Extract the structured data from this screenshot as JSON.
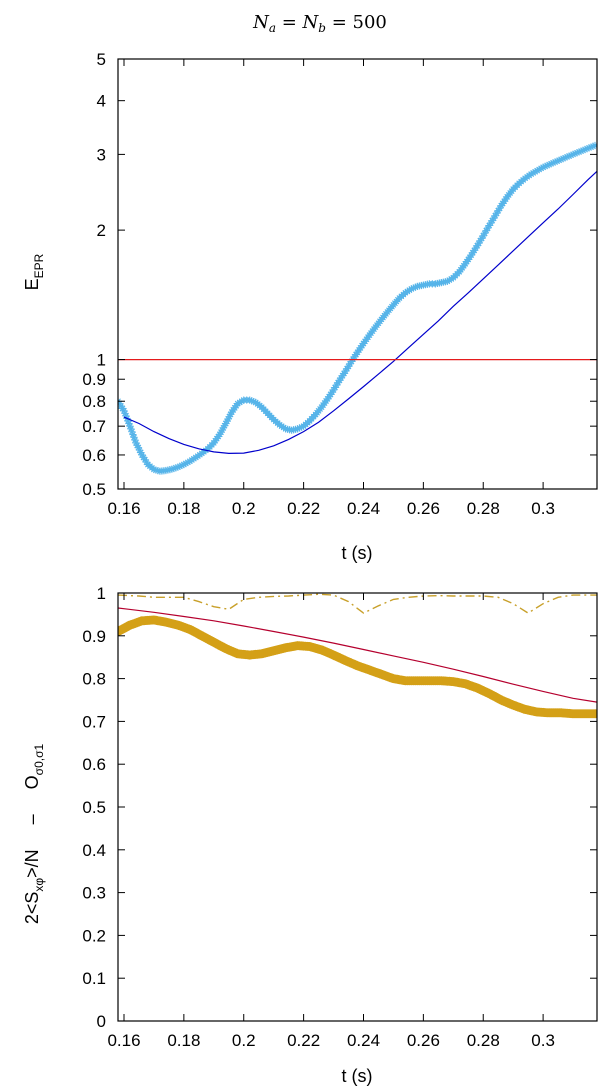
{
  "title": {
    "text": "N_a = N_b = 500",
    "n1": "N",
    "s1": "a",
    "eq1": " = ",
    "n2": "N",
    "s2": "b",
    "eq2": " = ",
    "val": "500"
  },
  "chart_data": [
    {
      "type": "line",
      "xlabel": "t (s)",
      "ylabel": {
        "main": "E",
        "sub": "EPR"
      },
      "xlim": [
        0.158,
        0.318
      ],
      "ylim": [
        0.5,
        5
      ],
      "yscale": "log",
      "xticks": [
        0.16,
        0.18,
        0.2,
        0.22,
        0.24,
        0.26,
        0.28,
        0.3
      ],
      "xtick_labels": [
        "0.16",
        "0.18",
        "0.2",
        "0.22",
        "0.24",
        "0.26",
        "0.28",
        "0.3"
      ],
      "yticks": [
        0.5,
        0.6,
        0.7,
        0.8,
        0.9,
        1,
        2,
        3,
        4,
        5
      ],
      "ytick_labels": [
        "0.5",
        "0.6",
        "0.7",
        "0.8",
        "0.9",
        "1",
        "2",
        "3",
        "4",
        "5"
      ],
      "grid": false,
      "series": [
        {
          "style": "markers",
          "marker": "star",
          "color": "#56b4e9",
          "x": [
            0.158,
            0.16,
            0.162,
            0.164,
            0.166,
            0.168,
            0.17,
            0.172,
            0.174,
            0.176,
            0.178,
            0.18,
            0.182,
            0.184,
            0.186,
            0.188,
            0.19,
            0.192,
            0.194,
            0.196,
            0.198,
            0.2,
            0.202,
            0.204,
            0.206,
            0.208,
            0.21,
            0.212,
            0.214,
            0.216,
            0.218,
            0.22,
            0.222,
            0.224,
            0.226,
            0.228,
            0.23,
            0.232,
            0.234,
            0.236,
            0.238,
            0.24,
            0.242,
            0.244,
            0.246,
            0.248,
            0.25,
            0.252,
            0.254,
            0.256,
            0.258,
            0.26,
            0.262,
            0.264,
            0.266,
            0.268,
            0.27,
            0.272,
            0.274,
            0.276,
            0.278,
            0.28,
            0.282,
            0.284,
            0.286,
            0.288,
            0.29,
            0.292,
            0.294,
            0.296,
            0.298,
            0.3,
            0.302,
            0.304,
            0.306,
            0.308,
            0.31,
            0.312,
            0.314,
            0.316,
            0.318
          ],
          "y": [
            0.8,
            0.76,
            0.7,
            0.64,
            0.6,
            0.57,
            0.555,
            0.55,
            0.552,
            0.556,
            0.562,
            0.57,
            0.58,
            0.592,
            0.605,
            0.62,
            0.64,
            0.67,
            0.71,
            0.755,
            0.79,
            0.805,
            0.805,
            0.795,
            0.775,
            0.75,
            0.725,
            0.705,
            0.69,
            0.685,
            0.69,
            0.7,
            0.72,
            0.745,
            0.775,
            0.81,
            0.85,
            0.895,
            0.94,
            0.99,
            1.04,
            1.09,
            1.14,
            1.19,
            1.24,
            1.29,
            1.34,
            1.39,
            1.43,
            1.46,
            1.48,
            1.49,
            1.5,
            1.5,
            1.51,
            1.52,
            1.55,
            1.6,
            1.67,
            1.75,
            1.84,
            1.94,
            2.05,
            2.16,
            2.28,
            2.39,
            2.49,
            2.57,
            2.64,
            2.7,
            2.75,
            2.8,
            2.84,
            2.88,
            2.92,
            2.96,
            3.0,
            3.04,
            3.08,
            3.12,
            3.16
          ]
        },
        {
          "style": "line",
          "color": "#0000cc",
          "width": 1.2,
          "x": [
            0.16,
            0.165,
            0.17,
            0.175,
            0.18,
            0.185,
            0.19,
            0.195,
            0.2,
            0.205,
            0.21,
            0.215,
            0.22,
            0.225,
            0.23,
            0.235,
            0.24,
            0.245,
            0.25,
            0.255,
            0.26,
            0.265,
            0.27,
            0.275,
            0.28,
            0.285,
            0.29,
            0.295,
            0.3,
            0.305,
            0.31,
            0.315,
            0.318
          ],
          "y": [
            0.735,
            0.71,
            0.68,
            0.655,
            0.635,
            0.62,
            0.61,
            0.605,
            0.606,
            0.615,
            0.63,
            0.652,
            0.68,
            0.715,
            0.76,
            0.81,
            0.865,
            0.925,
            0.99,
            1.065,
            1.145,
            1.23,
            1.33,
            1.43,
            1.54,
            1.66,
            1.79,
            1.93,
            2.08,
            2.24,
            2.42,
            2.62,
            2.74
          ]
        },
        {
          "style": "line",
          "color": "#e41a1c",
          "width": 1.2,
          "x": [
            0.158,
            0.318
          ],
          "y": [
            1,
            1
          ]
        }
      ]
    },
    {
      "type": "line",
      "xlabel": "t (s)",
      "ylabel": {
        "p1": "2<S",
        "s1": "xφ",
        "p2": ">/N     –     O",
        "s2": "σ0,σ1"
      },
      "xlim": [
        0.158,
        0.318
      ],
      "ylim": [
        0,
        1
      ],
      "xticks": [
        0.16,
        0.18,
        0.2,
        0.22,
        0.24,
        0.26,
        0.28,
        0.3
      ],
      "xtick_labels": [
        "0.16",
        "0.18",
        "0.2",
        "0.22",
        "0.24",
        "0.26",
        "0.28",
        "0.3"
      ],
      "yticks": [
        0,
        0.1,
        0.2,
        0.3,
        0.4,
        0.5,
        0.6,
        0.7,
        0.8,
        0.9,
        1
      ],
      "ytick_labels": [
        "0",
        "0.1",
        "0.2",
        "0.3",
        "0.4",
        "0.5",
        "0.6",
        "0.7",
        "0.8",
        "0.9",
        "1"
      ],
      "grid": false,
      "series": [
        {
          "style": "dots",
          "color": "#d4a017",
          "width": 9,
          "x": [
            0.158,
            0.162,
            0.166,
            0.17,
            0.174,
            0.178,
            0.182,
            0.186,
            0.19,
            0.194,
            0.198,
            0.202,
            0.206,
            0.21,
            0.214,
            0.218,
            0.222,
            0.226,
            0.23,
            0.234,
            0.238,
            0.242,
            0.246,
            0.25,
            0.254,
            0.258,
            0.262,
            0.266,
            0.27,
            0.274,
            0.278,
            0.282,
            0.286,
            0.29,
            0.294,
            0.298,
            0.302,
            0.306,
            0.31,
            0.314,
            0.318
          ],
          "y": [
            0.91,
            0.925,
            0.935,
            0.937,
            0.932,
            0.925,
            0.915,
            0.9,
            0.885,
            0.87,
            0.858,
            0.855,
            0.858,
            0.865,
            0.872,
            0.877,
            0.875,
            0.867,
            0.855,
            0.842,
            0.83,
            0.82,
            0.81,
            0.8,
            0.795,
            0.795,
            0.795,
            0.795,
            0.793,
            0.788,
            0.778,
            0.765,
            0.75,
            0.738,
            0.728,
            0.722,
            0.72,
            0.72,
            0.718,
            0.718,
            0.718
          ]
        },
        {
          "style": "line",
          "color": "#b5002e",
          "width": 1.2,
          "x": [
            0.158,
            0.17,
            0.18,
            0.19,
            0.2,
            0.21,
            0.22,
            0.23,
            0.24,
            0.25,
            0.26,
            0.27,
            0.28,
            0.29,
            0.3,
            0.31,
            0.318
          ],
          "y": [
            0.965,
            0.955,
            0.945,
            0.935,
            0.923,
            0.91,
            0.897,
            0.883,
            0.868,
            0.853,
            0.838,
            0.822,
            0.805,
            0.787,
            0.77,
            0.754,
            0.745
          ]
        },
        {
          "style": "dashdot",
          "color": "#c8a02a",
          "width": 1.4,
          "x": [
            0.158,
            0.165,
            0.17,
            0.175,
            0.18,
            0.185,
            0.19,
            0.195,
            0.2,
            0.205,
            0.21,
            0.215,
            0.22,
            0.225,
            0.23,
            0.235,
            0.24,
            0.245,
            0.25,
            0.255,
            0.26,
            0.265,
            0.27,
            0.275,
            0.28,
            0.285,
            0.29,
            0.295,
            0.3,
            0.305,
            0.31,
            0.318
          ],
          "y": [
            0.995,
            0.993,
            0.99,
            0.99,
            0.99,
            0.98,
            0.968,
            0.962,
            0.985,
            0.99,
            0.992,
            0.993,
            0.995,
            0.997,
            0.995,
            0.98,
            0.953,
            0.97,
            0.985,
            0.99,
            0.993,
            0.994,
            0.993,
            0.993,
            0.993,
            0.99,
            0.975,
            0.953,
            0.975,
            0.99,
            0.995,
            0.995
          ]
        }
      ]
    }
  ]
}
